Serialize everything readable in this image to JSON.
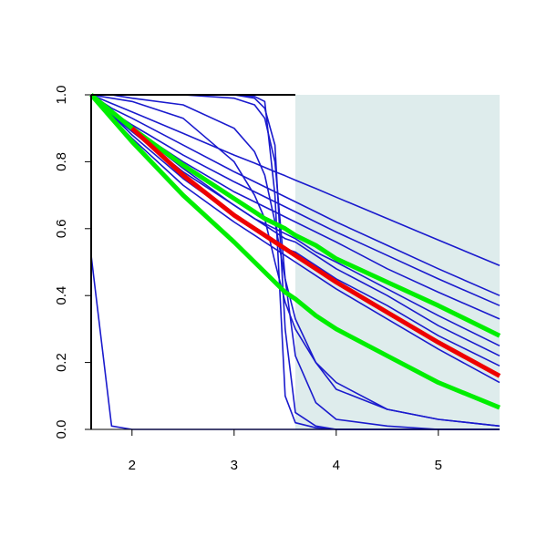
{
  "chart_data": {
    "type": "line",
    "x": [
      1.6,
      1.8,
      2.0,
      2.5,
      3.0,
      3.2,
      3.3,
      3.4,
      3.5,
      3.6,
      3.8,
      4.0,
      4.5,
      5.0,
      5.6
    ],
    "xlim": [
      1.6,
      5.6
    ],
    "ylim": [
      0,
      1
    ],
    "xticks": [
      2,
      3,
      4,
      5
    ],
    "yticks": [
      {
        "value": 0,
        "label": "0.0"
      },
      {
        "value": 0.2,
        "label": "0.2"
      },
      {
        "value": 0.4,
        "label": "0.4"
      },
      {
        "value": 0.6,
        "label": "0.6"
      },
      {
        "value": 0.8,
        "label": "0.8"
      },
      {
        "value": 1,
        "label": "1.0"
      }
    ],
    "shade_x": [
      3.6,
      5.6
    ],
    "shade_color": "#deecec",
    "series": [
      {
        "color": "#1a1acd",
        "values": [
          1,
          0.974,
          0.949,
          0.885,
          0.82,
          0.796,
          0.783,
          0.77,
          0.758,
          0.745,
          0.72,
          0.694,
          0.63,
          0.566,
          0.49
        ]
      },
      {
        "color": "#1a1acd",
        "values": [
          1,
          0.96,
          0.93,
          0.85,
          0.77,
          0.74,
          0.725,
          0.71,
          0.695,
          0.68,
          0.65,
          0.62,
          0.55,
          0.48,
          0.4
        ]
      },
      {
        "color": "#1a1acd",
        "values": [
          1,
          0.95,
          0.91,
          0.82,
          0.74,
          0.71,
          0.695,
          0.68,
          0.665,
          0.65,
          0.62,
          0.59,
          0.52,
          0.45,
          0.37
        ]
      },
      {
        "color": "#1a1acd",
        "values": [
          1,
          0.95,
          0.9,
          0.8,
          0.71,
          0.68,
          0.665,
          0.65,
          0.635,
          0.62,
          0.59,
          0.56,
          0.48,
          0.41,
          0.33
        ]
      },
      {
        "color": "#1a1acd",
        "values": [
          1,
          0.94,
          0.89,
          0.77,
          0.67,
          0.63,
          0.615,
          0.6,
          0.585,
          0.57,
          0.53,
          0.5,
          0.42,
          0.34,
          0.25
        ]
      },
      {
        "color": "#1a1acd",
        "values": [
          1,
          0.95,
          0.9,
          0.78,
          0.67,
          0.63,
          0.61,
          0.59,
          0.57,
          0.56,
          0.52,
          0.48,
          0.4,
          0.31,
          0.22
        ]
      },
      {
        "color": "#1a1acd",
        "values": [
          1,
          0.94,
          0.88,
          0.75,
          0.64,
          0.6,
          0.58,
          0.56,
          0.54,
          0.53,
          0.49,
          0.45,
          0.37,
          0.28,
          0.19
        ]
      },
      {
        "color": "#1a1acd",
        "values": [
          1,
          0.93,
          0.87,
          0.73,
          0.62,
          0.58,
          0.56,
          0.54,
          0.52,
          0.5,
          0.46,
          0.42,
          0.33,
          0.24,
          0.14
        ]
      },
      {
        "color": "#1a1acd",
        "values": [
          1,
          1,
          1,
          1,
          1,
          0.995,
          0.98,
          0.7,
          0.1,
          0.02,
          0.005,
          0,
          0,
          0,
          0
        ]
      },
      {
        "color": "#1a1acd",
        "values": [
          1,
          1,
          1,
          1,
          1,
          0.99,
          0.96,
          0.85,
          0.3,
          0.05,
          0.01,
          0,
          0,
          0,
          0
        ]
      },
      {
        "color": "#1a1acd",
        "values": [
          1,
          1,
          1,
          1,
          0.99,
          0.97,
          0.93,
          0.8,
          0.45,
          0.22,
          0.08,
          0.03,
          0.01,
          0,
          0
        ]
      },
      {
        "color": "#1a1acd",
        "values": [
          1,
          0.99,
          0.98,
          0.93,
          0.8,
          0.7,
          0.63,
          0.5,
          0.38,
          0.3,
          0.2,
          0.14,
          0.06,
          0.03,
          0.01
        ]
      },
      {
        "color": "#1a1acd",
        "values": [
          1,
          1,
          0.99,
          0.97,
          0.9,
          0.83,
          0.76,
          0.62,
          0.45,
          0.33,
          0.2,
          0.12,
          0.06,
          0.03,
          0.01
        ]
      },
      {
        "color": "#1a1acd",
        "values": [
          0.52,
          0.01,
          0,
          0,
          0,
          0,
          0,
          0,
          0,
          0,
          0,
          0,
          0,
          0,
          0
        ]
      },
      {
        "color": "#00ee00",
        "values": [
          1,
          0.95,
          0.9,
          0.79,
          0.69,
          0.65,
          0.63,
          0.615,
          0.6,
          0.58,
          0.55,
          0.51,
          0.44,
          0.37,
          0.28
        ]
      },
      {
        "color": "#00ee00",
        "values": [
          1,
          0.93,
          0.86,
          0.7,
          0.56,
          0.5,
          0.47,
          0.44,
          0.41,
          0.39,
          0.34,
          0.3,
          0.22,
          0.14,
          0.065
        ]
      },
      {
        "color": "#ee0000",
        "values": [
          null,
          null,
          0.9,
          0.76,
          0.64,
          0.6,
          0.58,
          0.56,
          0.54,
          0.52,
          0.48,
          0.44,
          0.35,
          0.26,
          0.16
        ]
      }
    ]
  }
}
